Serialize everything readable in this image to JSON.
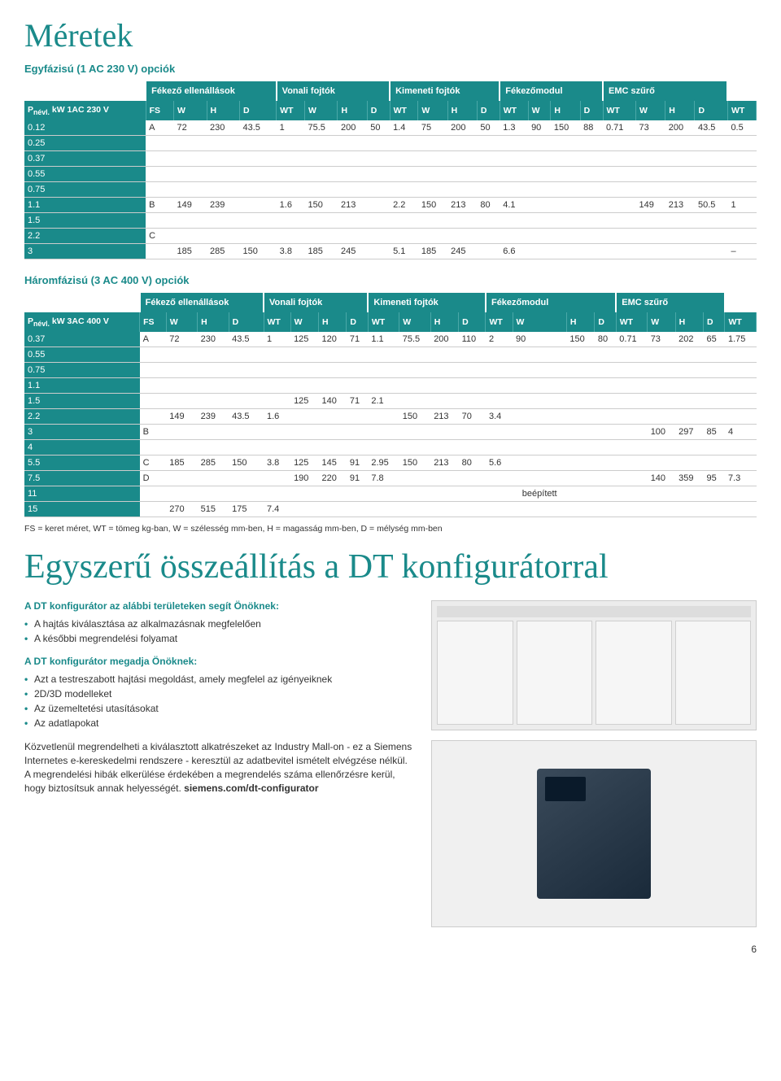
{
  "page": {
    "title1": "Méretek",
    "subtitle1": "Egyfázisú (1 AC 230 V) opciók",
    "subtitle2": "Háromfázisú (3 AC 400 V) opciók",
    "title2": "Egyszerű összeállítás a DT konfigurátorral",
    "footnote": "FS = keret méret, WT = tömeg kg-ban, W = szélesség mm-ben, H = magasság mm-ben, D = mélység mm-ben",
    "page_number": "6"
  },
  "groups": [
    "Fékező ellenállások",
    "Vonali fojtók",
    "Kimeneti fojtók",
    "Fékezőmodul",
    "EMC szűrő"
  ],
  "table1": {
    "row_label_header": "Pnévl. kW 1AC 230 V",
    "sub_headers": [
      "FS",
      "W",
      "H",
      "D",
      "WT",
      "W",
      "H",
      "D",
      "WT",
      "W",
      "H",
      "D",
      "WT",
      "W",
      "H",
      "D",
      "WT",
      "W",
      "H",
      "D",
      "WT"
    ],
    "rows": [
      {
        "label": "0.12",
        "cells": [
          "A",
          "72",
          "230",
          "43.5",
          "1",
          "75.5",
          "200",
          "50",
          "1.4",
          "75",
          "200",
          "50",
          "1.3",
          "90",
          "150",
          "88",
          "0.71",
          "73",
          "200",
          "43.5",
          "0.5"
        ]
      },
      {
        "label": "0.25",
        "cells": [
          "",
          "",
          "",
          "",
          "",
          "",
          "",
          "",
          "",
          "",
          "",
          "",
          "",
          "",
          "",
          "",
          "",
          "",
          "",
          "",
          ""
        ]
      },
      {
        "label": "0.37",
        "cells": [
          "",
          "",
          "",
          "",
          "",
          "",
          "",
          "",
          "",
          "",
          "",
          "",
          "",
          "",
          "",
          "",
          "",
          "",
          "",
          "",
          ""
        ]
      },
      {
        "label": "0.55",
        "cells": [
          "",
          "",
          "",
          "",
          "",
          "",
          "",
          "",
          "",
          "",
          "",
          "",
          "",
          "",
          "",
          "",
          "",
          "",
          "",
          "",
          ""
        ]
      },
      {
        "label": "0.75",
        "cells": [
          "",
          "",
          "",
          "",
          "",
          "",
          "",
          "",
          "",
          "",
          "",
          "",
          "",
          "",
          "",
          "",
          "",
          "",
          "",
          "",
          ""
        ]
      },
      {
        "label": "1.1",
        "cells": [
          "B",
          "149",
          "239",
          "",
          "1.6",
          "150",
          "213",
          "",
          "2.2",
          "150",
          "213",
          "80",
          "4.1",
          "",
          "",
          "",
          "",
          "149",
          "213",
          "50.5",
          "1"
        ]
      },
      {
        "label": "1.5",
        "cells": [
          "",
          "",
          "",
          "",
          "",
          "",
          "",
          "",
          "",
          "",
          "",
          "",
          "",
          "",
          "",
          "",
          "",
          "",
          "",
          "",
          ""
        ]
      },
      {
        "label": "2.2",
        "cells": [
          "C",
          "",
          "",
          "",
          "",
          "",
          "",
          "",
          "",
          "",
          "",
          "",
          "",
          "",
          "",
          "",
          "",
          "",
          "",
          "",
          ""
        ]
      },
      {
        "label": "3",
        "cells": [
          "",
          "185",
          "285",
          "150",
          "3.8",
          "185",
          "245",
          "",
          "5.1",
          "185",
          "245",
          "",
          "6.6",
          "",
          "",
          "",
          "",
          "",
          "",
          "",
          "–"
        ]
      }
    ]
  },
  "table2": {
    "row_label_header": "Pnévl. kW 3AC 400 V",
    "sub_headers": [
      "FS",
      "W",
      "H",
      "D",
      "WT",
      "W",
      "H",
      "D",
      "WT",
      "W",
      "H",
      "D",
      "WT",
      "W",
      "H",
      "D",
      "WT",
      "W",
      "H",
      "D",
      "WT"
    ],
    "builtin_text": "beépített",
    "rows": [
      {
        "label": "0.37",
        "cells": [
          "A",
          "72",
          "230",
          "43.5",
          "1",
          "125",
          "120",
          "71",
          "1.1",
          "75.5",
          "200",
          "110",
          "2",
          "90",
          "150",
          "80",
          "0.71",
          "73",
          "202",
          "65",
          "1.75"
        ]
      },
      {
        "label": "0.55",
        "cells": [
          "",
          "",
          "",
          "",
          "",
          "",
          "",
          "",
          "",
          "",
          "",
          "",
          "",
          "",
          "",
          "",
          "",
          "",
          "",
          "",
          ""
        ]
      },
      {
        "label": "0.75",
        "cells": [
          "",
          "",
          "",
          "",
          "",
          "",
          "",
          "",
          "",
          "",
          "",
          "",
          "",
          "",
          "",
          "",
          "",
          "",
          "",
          "",
          ""
        ]
      },
      {
        "label": "1.1",
        "cells": [
          "",
          "",
          "",
          "",
          "",
          "",
          "",
          "",
          "",
          "",
          "",
          "",
          "",
          "",
          "",
          "",
          "",
          "",
          "",
          "",
          ""
        ]
      },
      {
        "label": "1.5",
        "cells": [
          "",
          "",
          "",
          "",
          "",
          "125",
          "140",
          "71",
          "2.1",
          "",
          "",
          "",
          "",
          "",
          "",
          "",
          "",
          "",
          "",
          "",
          ""
        ]
      },
      {
        "label": "2.2",
        "cells": [
          "",
          "149",
          "239",
          "43.5",
          "1.6",
          "",
          "",
          "",
          "",
          "150",
          "213",
          "70",
          "3.4",
          "",
          "",
          "",
          "",
          "",
          "",
          "",
          ""
        ]
      },
      {
        "label": "3",
        "cells": [
          "B",
          "",
          "",
          "",
          "",
          "",
          "",
          "",
          "",
          "",
          "",
          "",
          "",
          "",
          "",
          "",
          "",
          "100",
          "297",
          "85",
          "4"
        ]
      },
      {
        "label": "4",
        "cells": [
          "",
          "",
          "",
          "",
          "",
          "",
          "",
          "",
          "",
          "",
          "",
          "",
          "",
          "",
          "",
          "",
          "",
          "",
          "",
          "",
          ""
        ]
      },
      {
        "label": "5.5",
        "cells": [
          "C",
          "185",
          "285",
          "150",
          "3.8",
          "125",
          "145",
          "91",
          "2.95",
          "150",
          "213",
          "80",
          "5.6",
          "",
          "",
          "",
          "",
          "",
          "",
          "",
          ""
        ]
      },
      {
        "label": "7.5",
        "cells": [
          "D",
          "",
          "",
          "",
          "",
          "190",
          "220",
          "91",
          "7.8",
          "",
          "",
          "",
          "",
          "",
          "",
          "",
          "",
          "140",
          "359",
          "95",
          "7.3"
        ]
      },
      {
        "label": "11",
        "cells": [
          "",
          "",
          "",
          "",
          "",
          "",
          "",
          "",
          "",
          "",
          "",
          "",
          "",
          "__BUILTIN__",
          "",
          "",
          "",
          "",
          "",
          "",
          ""
        ]
      },
      {
        "label": "15",
        "cells": [
          "",
          "270",
          "515",
          "175",
          "7.4",
          "",
          "",
          "",
          "",
          "",
          "",
          "",
          "",
          "",
          "",
          "",
          "",
          "",
          "",
          "",
          ""
        ]
      }
    ]
  },
  "text": {
    "help_head": "A DT konfigurátor az alábbi területeken segít Önöknek:",
    "help_items": [
      "A hajtás kiválasztása az alkalmazásnak megfelelően",
      "A későbbi megrendelési folyamat"
    ],
    "give_head": "A DT konfigurátor megadja Önöknek:",
    "give_items": [
      "Azt a testreszabott hajtási megoldást, amely megfelel az igényeiknek",
      "2D/3D modelleket",
      "Az üzemeltetési utasításokat",
      "Az adatlapokat"
    ],
    "para": "Közvetlenül megrendelheti a kiválasztott alkatrészeket az Industry Mall-on - ez a Siemens Internetes e-kereskedelmi rendszere - keresztül az adatbevitel ismételt elvégzése nélkül. A megrendelési hibák elkerülése érdekében a megrendelés száma ellenőrzésre kerül, hogy biztosítsuk annak helyességét.",
    "para_link": "siemens.com/dt-configurator"
  },
  "colors": {
    "teal": "#1a8a8a",
    "text": "#333333",
    "border": "#cccccc",
    "white": "#ffffff"
  }
}
